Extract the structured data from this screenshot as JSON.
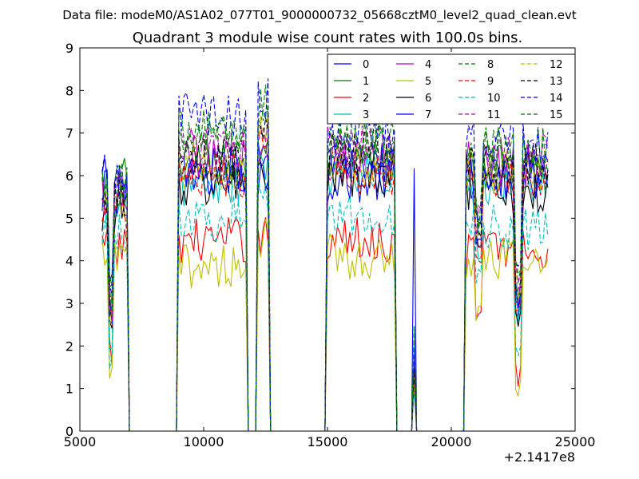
{
  "chart_data": {
    "type": "line",
    "suptitle": "Data file: modeM0/AS1A02_077T01_9000000732_05668cztM0_level2_quad_clean.evt",
    "title": "Quadrant 3 module wise count rates with 100.0s bins.",
    "xlabel": "",
    "ylabel": "",
    "x_offset_label": "+2.1417e8",
    "xlim": [
      5000,
      25000
    ],
    "ylim": [
      0,
      9
    ],
    "x_ticks": [
      5000,
      10000,
      15000,
      20000,
      25000
    ],
    "y_ticks": [
      0,
      1,
      2,
      3,
      4,
      5,
      6,
      7,
      8,
      9
    ],
    "grid": false,
    "legend_position": "top-right",
    "legend_columns": 4,
    "active_segments": [
      [
        5900,
        6900
      ],
      [
        9000,
        11700
      ],
      [
        12200,
        12600
      ],
      [
        15000,
        17700
      ],
      [
        18450,
        18550
      ],
      [
        20600,
        23900
      ]
    ],
    "series": [
      {
        "name": "0",
        "color": "#0000ff",
        "style": "solid",
        "levels": [
          5.9,
          6.0,
          6.0,
          5.9,
          6.0,
          6.0
        ]
      },
      {
        "name": "1",
        "color": "#008000",
        "style": "solid",
        "levels": [
          5.9,
          6.3,
          6.5,
          6.3,
          1.7,
          6.2
        ]
      },
      {
        "name": "2",
        "color": "#ff0000",
        "style": "solid",
        "levels": [
          4.3,
          4.5,
          4.6,
          4.5,
          1.5,
          4.3
        ]
      },
      {
        "name": "3",
        "color": "#00bfbf",
        "style": "solid",
        "levels": [
          5.0,
          5.8,
          6.2,
          6.0,
          1.5,
          5.8
        ]
      },
      {
        "name": "4",
        "color": "#bf00bf",
        "style": "solid",
        "levels": [
          5.5,
          6.4,
          6.6,
          6.4,
          1.6,
          6.3
        ]
      },
      {
        "name": "5",
        "color": "#bfbf00",
        "style": "solid",
        "levels": [
          4.0,
          3.9,
          4.5,
          4.1,
          1.4,
          4.0
        ]
      },
      {
        "name": "6",
        "color": "#000000",
        "style": "solid",
        "levels": [
          5.2,
          5.8,
          6.0,
          5.9,
          1.6,
          5.6
        ]
      },
      {
        "name": "7",
        "color": "#0000ff",
        "style": "solid",
        "levels": [
          5.6,
          6.1,
          6.3,
          6.2,
          1.6,
          6.0
        ]
      },
      {
        "name": "8",
        "color": "#008000",
        "style": "dashed",
        "levels": [
          5.7,
          6.8,
          7.6,
          6.8,
          2.3,
          6.6
        ]
      },
      {
        "name": "9",
        "color": "#ff0000",
        "style": "dashed",
        "levels": [
          5.2,
          6.0,
          6.8,
          6.1,
          1.8,
          5.9
        ]
      },
      {
        "name": "10",
        "color": "#00bfbf",
        "style": "dashed",
        "levels": [
          4.6,
          5.0,
          5.6,
          5.1,
          1.6,
          4.8
        ]
      },
      {
        "name": "11",
        "color": "#bf00bf",
        "style": "dashed",
        "levels": [
          5.6,
          6.6,
          7.3,
          6.7,
          1.8,
          6.5
        ]
      },
      {
        "name": "12",
        "color": "#bfbf00",
        "style": "dashed",
        "levels": [
          5.3,
          6.2,
          7.0,
          6.3,
          1.7,
          6.1
        ]
      },
      {
        "name": "13",
        "color": "#000000",
        "style": "dashed",
        "levels": [
          5.4,
          6.4,
          7.1,
          6.5,
          1.7,
          6.3
        ]
      },
      {
        "name": "14",
        "color": "#0000ff",
        "style": "dashed",
        "levels": [
          6.0,
          7.4,
          7.8,
          7.0,
          2.0,
          6.8
        ]
      },
      {
        "name": "15",
        "color": "#008000",
        "style": "dashed",
        "levels": [
          5.8,
          7.0,
          7.6,
          6.9,
          2.3,
          6.6
        ]
      }
    ]
  }
}
